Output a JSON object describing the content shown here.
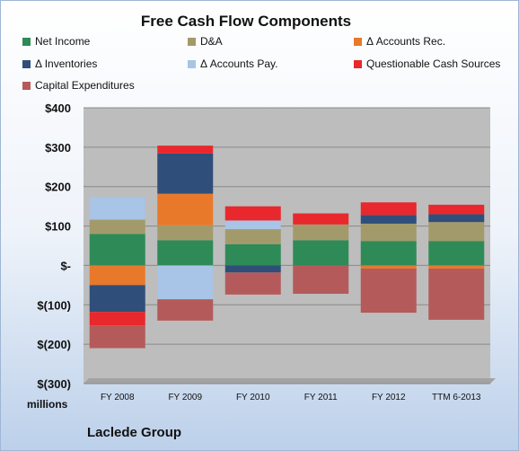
{
  "chart_data": {
    "type": "bar",
    "title": "Free Cash Flow Components",
    "categories": [
      "FY 2008",
      "FY 2009",
      "FY 2010",
      "FY 2011",
      "FY 2012",
      "TTM 6-2013"
    ],
    "series": [
      {
        "name": "Net Income",
        "color": "#2e8b57",
        "values": [
          80,
          64,
          54,
          64,
          62,
          62
        ]
      },
      {
        "name": "D&A",
        "color": "#a39a6b",
        "values": [
          36,
          38,
          38,
          40,
          44,
          48
        ]
      },
      {
        "name": "Δ Accounts Rec.",
        "color": "#e8792b",
        "values": [
          -50,
          80,
          0,
          0,
          -8,
          -8
        ]
      },
      {
        "name": "Δ Inventories",
        "color": "#2f4f7a",
        "values": [
          -68,
          102,
          -18,
          0,
          22,
          20
        ]
      },
      {
        "name": "Δ Accounts Pay.",
        "color": "#a8c4e6",
        "values": [
          58,
          -86,
          22,
          0,
          0,
          0
        ]
      },
      {
        "name": "Questionable Cash Sources",
        "color": "#e8282c",
        "values": [
          -34,
          20,
          36,
          28,
          32,
          24
        ]
      },
      {
        "name": "Capital Expenditures",
        "color": "#b55a5a",
        "values": [
          -58,
          -54,
          -56,
          -72,
          -112,
          -130
        ]
      }
    ],
    "yticks": [
      "$400",
      "$300",
      "$200",
      "$100",
      "$-",
      "$(100)",
      "$(200)",
      "$(300)"
    ],
    "ylim": [
      -300,
      400
    ],
    "ylabel": "millions",
    "grid": true,
    "legend_position": "top",
    "plot_background": "#bdbdbd"
  },
  "footer": {
    "company": "Laclede Group"
  }
}
